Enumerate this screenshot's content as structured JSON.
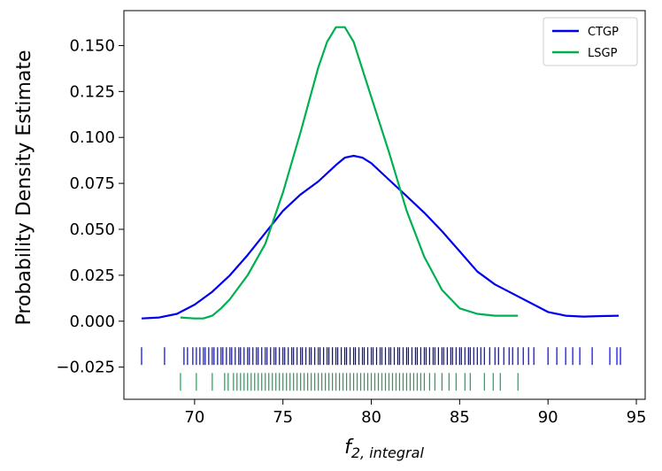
{
  "chart_data": {
    "type": "line",
    "title": "",
    "xlabel_main": "f",
    "xlabel_sub": "2, integral",
    "ylabel": "Probability Density Estimate",
    "xlim": [
      66,
      95.5
    ],
    "ylim": [
      -0.0425,
      0.169
    ],
    "x_ticks": [
      70,
      75,
      80,
      85,
      90,
      95
    ],
    "y_ticks": [
      -0.025,
      0.0,
      0.025,
      0.05,
      0.075,
      0.1,
      0.125,
      0.15
    ],
    "y_tick_labels": [
      "−0.025",
      "0.000",
      "0.025",
      "0.050",
      "0.075",
      "0.100",
      "0.125",
      "0.150"
    ],
    "legend_position": "top-right",
    "series": [
      {
        "name": "CTGP",
        "color": "#0000ee",
        "x": [
          67.0,
          68.0,
          69.0,
          70.0,
          71.0,
          72.0,
          73.0,
          74.0,
          75.0,
          76.0,
          77.0,
          78.0,
          78.5,
          79.0,
          79.5,
          80.0,
          81.0,
          82.0,
          83.0,
          84.0,
          85.0,
          86.0,
          87.0,
          88.0,
          89.0,
          90.0,
          91.0,
          92.0,
          93.0,
          94.0
        ],
        "y": [
          0.0015,
          0.002,
          0.004,
          0.009,
          0.016,
          0.025,
          0.036,
          0.048,
          0.06,
          0.069,
          0.076,
          0.085,
          0.089,
          0.09,
          0.089,
          0.086,
          0.077,
          0.068,
          0.059,
          0.049,
          0.038,
          0.027,
          0.02,
          0.015,
          0.01,
          0.005,
          0.003,
          0.0025,
          0.0028,
          0.003
        ]
      },
      {
        "name": "LSGP",
        "color": "#00b050",
        "x": [
          69.2,
          70.0,
          70.5,
          71.0,
          71.5,
          72.0,
          73.0,
          74.0,
          75.0,
          76.0,
          77.0,
          77.5,
          78.0,
          78.5,
          79.0,
          80.0,
          81.0,
          82.0,
          83.0,
          84.0,
          85.0,
          86.0,
          87.0,
          88.3
        ],
        "y": [
          0.002,
          0.0015,
          0.0015,
          0.003,
          0.007,
          0.012,
          0.025,
          0.042,
          0.07,
          0.103,
          0.138,
          0.152,
          0.16,
          0.16,
          0.152,
          0.122,
          0.092,
          0.06,
          0.035,
          0.017,
          0.007,
          0.004,
          0.003,
          0.003
        ]
      }
    ],
    "rug": [
      {
        "name": "CTGP",
        "color": "#0000ee",
        "y_level": -0.019,
        "values": [
          67.0,
          68.3,
          69.4,
          69.6,
          69.9,
          70.1,
          70.3,
          70.5,
          70.6,
          70.8,
          71.0,
          71.1,
          71.3,
          71.5,
          71.6,
          71.8,
          72.0,
          72.1,
          72.3,
          72.5,
          72.6,
          72.8,
          73.0,
          73.1,
          73.3,
          73.5,
          73.6,
          73.8,
          74.0,
          74.1,
          74.3,
          74.5,
          74.6,
          74.8,
          75.0,
          75.1,
          75.3,
          75.5,
          75.6,
          75.8,
          76.0,
          76.1,
          76.3,
          76.5,
          76.6,
          76.8,
          77.0,
          77.1,
          77.3,
          77.5,
          77.6,
          77.8,
          78.0,
          78.1,
          78.3,
          78.5,
          78.6,
          78.8,
          79.0,
          79.1,
          79.3,
          79.5,
          79.6,
          79.8,
          80.0,
          80.1,
          80.3,
          80.5,
          80.6,
          80.8,
          81.0,
          81.1,
          81.3,
          81.5,
          81.6,
          81.8,
          82.0,
          82.1,
          82.3,
          82.5,
          82.6,
          82.8,
          83.0,
          83.1,
          83.3,
          83.5,
          83.6,
          83.8,
          84.0,
          84.1,
          84.3,
          84.5,
          84.6,
          84.8,
          85.0,
          85.1,
          85.3,
          85.5,
          85.6,
          85.8,
          86.0,
          86.2,
          86.4,
          86.7,
          87.0,
          87.2,
          87.5,
          87.8,
          88.0,
          88.3,
          88.6,
          88.9,
          89.2,
          90.0,
          90.5,
          91.0,
          91.4,
          91.8,
          92.5,
          93.5,
          93.9,
          94.1
        ]
      },
      {
        "name": "LSGP",
        "color": "#00b050",
        "y_level": -0.033,
        "values": [
          69.2,
          70.1,
          71.0,
          71.7,
          71.9,
          72.2,
          72.4,
          72.6,
          72.8,
          73.0,
          73.2,
          73.4,
          73.6,
          73.8,
          74.0,
          74.2,
          74.4,
          74.6,
          74.8,
          75.0,
          75.2,
          75.4,
          75.6,
          75.8,
          76.0,
          76.2,
          76.4,
          76.6,
          76.8,
          77.0,
          77.2,
          77.4,
          77.6,
          77.8,
          78.0,
          78.2,
          78.4,
          78.6,
          78.8,
          79.0,
          79.2,
          79.4,
          79.6,
          79.8,
          80.0,
          80.2,
          80.4,
          80.6,
          80.8,
          81.0,
          81.2,
          81.4,
          81.6,
          81.8,
          82.0,
          82.2,
          82.4,
          82.6,
          82.8,
          83.0,
          83.3,
          83.6,
          84.0,
          84.4,
          84.8,
          85.3,
          85.6,
          86.4,
          86.9,
          87.3,
          88.3
        ]
      }
    ]
  }
}
